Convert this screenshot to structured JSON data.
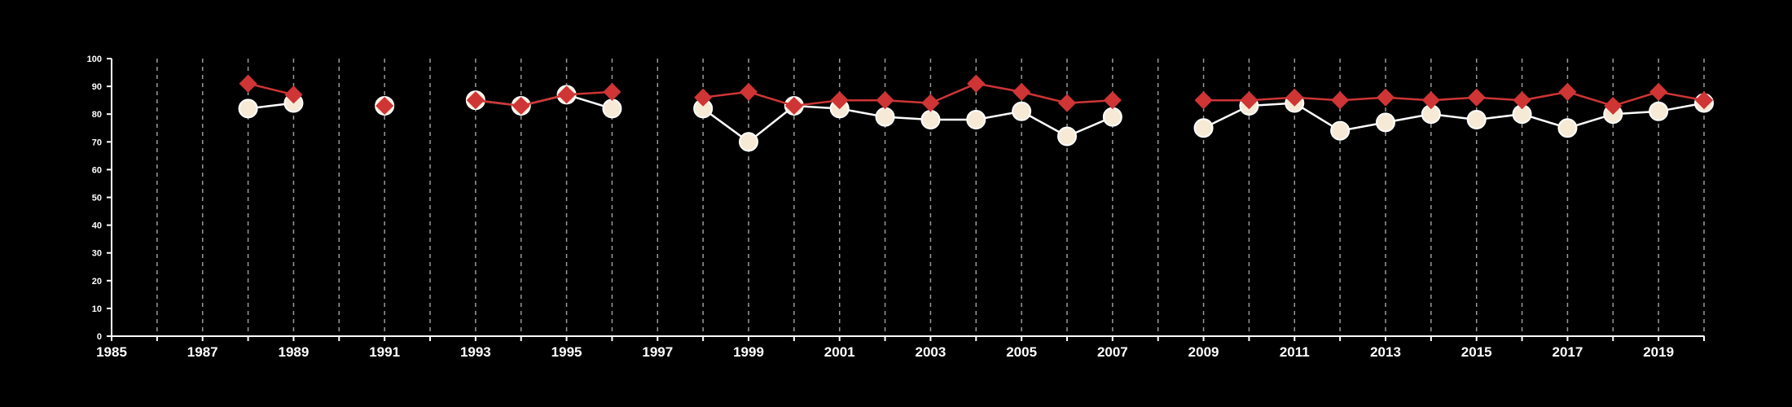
{
  "chart_data": {
    "type": "line",
    "title": "",
    "xlabel": "",
    "ylabel": "",
    "xlim": [
      1985,
      2020
    ],
    "ylim": [
      0,
      100
    ],
    "x_ticks": [
      1985,
      1987,
      1989,
      1991,
      1993,
      1995,
      1997,
      1999,
      2001,
      2003,
      2005,
      2007,
      2009,
      2011,
      2013,
      2015,
      2017,
      2019
    ],
    "y_ticks": [
      0,
      10,
      20,
      30,
      40,
      50,
      60,
      70,
      80,
      90,
      100
    ],
    "grid": {
      "vertical": true,
      "style": "dashed",
      "color": "#9a9a9a"
    },
    "series": [
      {
        "marker": "circle",
        "color": "#ffffff",
        "fill": "#f6ead6",
        "points": [
          [
            1988,
            82
          ],
          [
            1989,
            84
          ],
          null,
          [
            1991,
            83
          ],
          null,
          [
            1993,
            85
          ],
          [
            1994,
            83
          ],
          [
            1995,
            87
          ],
          [
            1996,
            82
          ],
          null,
          [
            1998,
            82
          ],
          [
            1999,
            70
          ],
          [
            2000,
            83
          ],
          [
            2001,
            82
          ],
          [
            2002,
            79
          ],
          [
            2003,
            78
          ],
          [
            2004,
            78
          ],
          [
            2005,
            81
          ],
          [
            2006,
            72
          ],
          [
            2007,
            79
          ],
          null,
          [
            2009,
            75
          ],
          [
            2010,
            83
          ],
          [
            2011,
            84
          ],
          [
            2012,
            74
          ],
          [
            2013,
            77
          ],
          [
            2014,
            80
          ],
          [
            2015,
            78
          ],
          [
            2016,
            80
          ],
          [
            2017,
            75
          ],
          [
            2018,
            80
          ],
          [
            2019,
            81
          ],
          [
            2020,
            84
          ]
        ]
      },
      {
        "marker": "diamond",
        "color": "#cf3535",
        "fill": "#cf3535",
        "points": [
          [
            1988,
            91
          ],
          [
            1989,
            87
          ],
          null,
          [
            1991,
            83
          ],
          null,
          [
            1993,
            85
          ],
          [
            1994,
            83
          ],
          [
            1995,
            87
          ],
          [
            1996,
            88
          ],
          null,
          [
            1998,
            86
          ],
          [
            1999,
            88
          ],
          [
            2000,
            83
          ],
          [
            2001,
            85
          ],
          [
            2002,
            85
          ],
          [
            2003,
            84
          ],
          [
            2004,
            91
          ],
          [
            2005,
            88
          ],
          [
            2006,
            84
          ],
          [
            2007,
            85
          ],
          null,
          [
            2009,
            85
          ],
          [
            2010,
            85
          ],
          [
            2011,
            86
          ],
          [
            2012,
            85
          ],
          [
            2013,
            86
          ],
          [
            2014,
            85
          ],
          [
            2015,
            86
          ],
          [
            2016,
            85
          ],
          [
            2017,
            88
          ],
          [
            2018,
            83
          ],
          [
            2019,
            88
          ],
          [
            2020,
            85
          ]
        ]
      }
    ]
  }
}
